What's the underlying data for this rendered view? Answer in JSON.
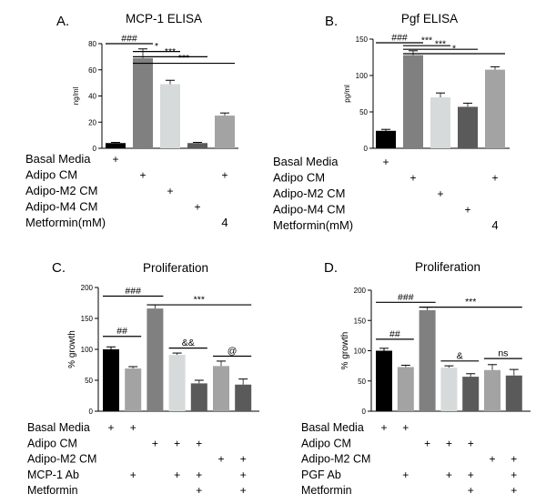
{
  "chart_data": [
    {
      "type": "bar",
      "panel": "A.",
      "title": "MCP-1 ELISA",
      "ylabel": "ng/ml",
      "ylim": [
        0,
        80
      ],
      "yticks": [
        0,
        20,
        40,
        60,
        80
      ],
      "bars": [
        {
          "value": 4,
          "err": 0.5,
          "color": "#000000"
        },
        {
          "value": 69,
          "err": 7,
          "color": "#808080"
        },
        {
          "value": 49,
          "err": 3,
          "color": "#d6dada"
        },
        {
          "value": 4,
          "err": 0.5,
          "color": "#5a5a5a"
        },
        {
          "value": 25,
          "err": 2,
          "color": "#a3a3a3"
        }
      ],
      "significance": [
        {
          "label": "###",
          "from": 0,
          "to": 1,
          "y": 80
        },
        {
          "label": "*",
          "from": 1,
          "to": 2,
          "y": 74
        },
        {
          "label": "***",
          "from": 1,
          "to": 3,
          "y": 70
        },
        {
          "label": "***",
          "from": 1,
          "to": 4,
          "y": 65
        }
      ],
      "conditions": [
        {
          "label": "Basal Media",
          "marks": [
            "+",
            "",
            "",
            "",
            ""
          ]
        },
        {
          "label": "Adipo CM",
          "marks": [
            "",
            "+",
            "",
            "",
            "+"
          ]
        },
        {
          "label": "Adipo-M2 CM",
          "marks": [
            "",
            "",
            "+",
            "",
            ""
          ]
        },
        {
          "label": "Adipo-M4 CM",
          "marks": [
            "",
            "",
            "",
            "+",
            ""
          ]
        },
        {
          "label": "Metformin(mM)",
          "marks": [
            "",
            "",
            "",
            "",
            "4"
          ]
        }
      ]
    },
    {
      "type": "bar",
      "panel": "B.",
      "title": "Pgf ELISA",
      "ylabel": "pg/ml",
      "ylim": [
        0,
        150
      ],
      "yticks": [
        0,
        50,
        100,
        150
      ],
      "bars": [
        {
          "value": 24,
          "err": 2,
          "color": "#000000"
        },
        {
          "value": 128,
          "err": 6,
          "color": "#808080"
        },
        {
          "value": 70,
          "err": 6,
          "color": "#d6dada"
        },
        {
          "value": 57,
          "err": 5,
          "color": "#5a5a5a"
        },
        {
          "value": 108,
          "err": 4,
          "color": "#a3a3a3"
        }
      ],
      "significance": [
        {
          "label": "###",
          "from": 0,
          "to": 1,
          "y": 145
        },
        {
          "label": "***",
          "from": 1,
          "to": 2,
          "y": 141
        },
        {
          "label": "***",
          "from": 1,
          "to": 3,
          "y": 136
        },
        {
          "label": "*",
          "from": 1,
          "to": 4,
          "y": 130
        }
      ],
      "conditions": [
        {
          "label": "Basal Media",
          "marks": [
            "+",
            "",
            "",
            "",
            ""
          ]
        },
        {
          "label": "Adipo CM",
          "marks": [
            "",
            "+",
            "",
            "",
            "+"
          ]
        },
        {
          "label": "Adipo-M2 CM",
          "marks": [
            "",
            "",
            "+",
            "",
            ""
          ]
        },
        {
          "label": "Adipo-M4 CM",
          "marks": [
            "",
            "",
            "",
            "+",
            ""
          ]
        },
        {
          "label": "Metformin(mM)",
          "marks": [
            "",
            "",
            "",
            "",
            "4"
          ]
        }
      ]
    },
    {
      "type": "bar",
      "panel": "C.",
      "title": "Proliferation",
      "ylabel": "% growth",
      "ylim": [
        0,
        200
      ],
      "yticks": [
        0,
        50,
        100,
        150,
        200
      ],
      "bars": [
        {
          "value": 100,
          "err": 4,
          "color": "#000000"
        },
        {
          "value": 69,
          "err": 3,
          "color": "#a3a3a3"
        },
        {
          "value": 166,
          "err": 6,
          "color": "#808080"
        },
        {
          "value": 91,
          "err": 3,
          "color": "#d6dada"
        },
        {
          "value": 45,
          "err": 5,
          "color": "#5a5a5a"
        },
        {
          "value": 73,
          "err": 8,
          "color": "#a3a3a3"
        },
        {
          "value": 43,
          "err": 9,
          "color": "#5a5a5a"
        }
      ],
      "significance": [
        {
          "label": "###",
          "from": 0,
          "to": 2,
          "y": 186
        },
        {
          "label": "##",
          "from": 0,
          "to": 1,
          "y": 121
        },
        {
          "label": "***",
          "from": 2,
          "to": 6,
          "y": 172
        },
        {
          "label": "&&",
          "from": 3,
          "to": 4,
          "y": 102
        },
        {
          "label": "@",
          "from": 5,
          "to": 6,
          "y": 89
        }
      ],
      "conditions": [
        {
          "label": "Basal Media",
          "marks": [
            "+",
            "+",
            "",
            "",
            "",
            "",
            ""
          ]
        },
        {
          "label": "Adipo CM",
          "marks": [
            "",
            "",
            "+",
            "+",
            "+",
            "",
            ""
          ]
        },
        {
          "label": "Adipo-M2 CM",
          "marks": [
            "",
            "",
            "",
            "",
            "",
            "+",
            "+"
          ]
        },
        {
          "label": "MCP-1 Ab",
          "marks": [
            "",
            "+",
            "",
            "+",
            "+",
            "",
            "+"
          ]
        },
        {
          "label": "Metformin",
          "marks": [
            "",
            "",
            "",
            "",
            "+",
            "",
            "+"
          ]
        }
      ]
    },
    {
      "type": "bar",
      "panel": "D.",
      "title": "Proliferation",
      "ylabel": "% growth",
      "ylim": [
        0,
        200
      ],
      "yticks": [
        0,
        50,
        100,
        150,
        200
      ],
      "bars": [
        {
          "value": 100,
          "err": 4,
          "color": "#000000"
        },
        {
          "value": 73,
          "err": 3,
          "color": "#a3a3a3"
        },
        {
          "value": 167,
          "err": 5,
          "color": "#808080"
        },
        {
          "value": 72,
          "err": 3,
          "color": "#d6dada"
        },
        {
          "value": 57,
          "err": 5,
          "color": "#5a5a5a"
        },
        {
          "value": 68,
          "err": 9,
          "color": "#a3a3a3"
        },
        {
          "value": 59,
          "err": 10,
          "color": "#5a5a5a"
        }
      ],
      "significance": [
        {
          "label": "###",
          "from": 0,
          "to": 2,
          "y": 180
        },
        {
          "label": "##",
          "from": 0,
          "to": 1,
          "y": 119
        },
        {
          "label": "***",
          "from": 2,
          "to": 6,
          "y": 172
        },
        {
          "label": "&",
          "from": 3,
          "to": 4,
          "y": 83
        },
        {
          "label": "ns",
          "from": 5,
          "to": 6,
          "y": 87
        }
      ],
      "conditions": [
        {
          "label": "Basal Media",
          "marks": [
            "+",
            "+",
            "",
            "",
            "",
            "",
            ""
          ]
        },
        {
          "label": "Adipo CM",
          "marks": [
            "",
            "",
            "+",
            "+",
            "+",
            "",
            ""
          ]
        },
        {
          "label": "Adipo-M2 CM",
          "marks": [
            "",
            "",
            "",
            "",
            "",
            "+",
            "+"
          ]
        },
        {
          "label": "PGF Ab",
          "marks": [
            "",
            "+",
            "",
            "+",
            "+",
            "",
            "+"
          ]
        },
        {
          "label": "Metformin",
          "marks": [
            "",
            "",
            "",
            "",
            "+",
            "",
            "+"
          ]
        }
      ]
    }
  ]
}
